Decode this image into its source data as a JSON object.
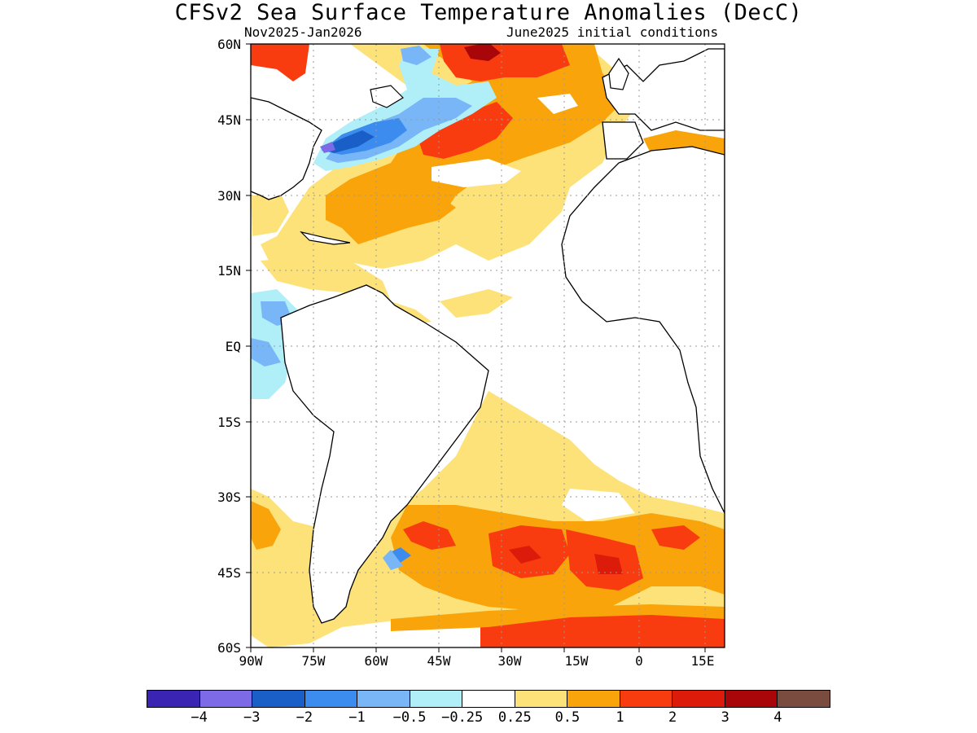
{
  "title": "CFSv2 Sea Surface Temperature Anomalies (DecC)",
  "period": "Nov2025-Jan2026",
  "init": "June2025 initial conditions",
  "lat_labels": [
    "60N",
    "45N",
    "30N",
    "15N",
    "EQ",
    "15S",
    "30S",
    "45S",
    "60S"
  ],
  "lon_labels": [
    "90W",
    "75W",
    "60W",
    "45W",
    "30W",
    "15W",
    "0",
    "15E"
  ],
  "colorbar": {
    "colors": [
      "#3a24b4",
      "#7d6ae6",
      "#1a5ec8",
      "#3c8cf0",
      "#78b6f8",
      "#b0eef8",
      "#ffffff",
      "#fde27a",
      "#f8a40a",
      "#f83c10",
      "#dc1b0a",
      "#a80608",
      "#7a4c40"
    ],
    "labels": [
      "−4",
      "−3",
      "−2",
      "−1",
      "−0.5",
      "−0.25",
      "0.25",
      "0.5",
      "1",
      "2",
      "3",
      "4"
    ]
  },
  "colors": {
    "land": "#ffffff",
    "coast": "#000000",
    "grid": "#9a9a9a",
    "pos_light": "#fde27a",
    "pos_orange": "#f8a40a",
    "pos_red": "#f83c10",
    "pos_darkred": "#dc1b0a",
    "pos_maroon": "#a80608",
    "neg_cyan": "#b0eef8",
    "neg_lightblue": "#78b6f8",
    "neg_blue": "#3c8cf0",
    "neg_darkblue": "#1a5ec8",
    "neg_purple": "#7d6ae6"
  }
}
